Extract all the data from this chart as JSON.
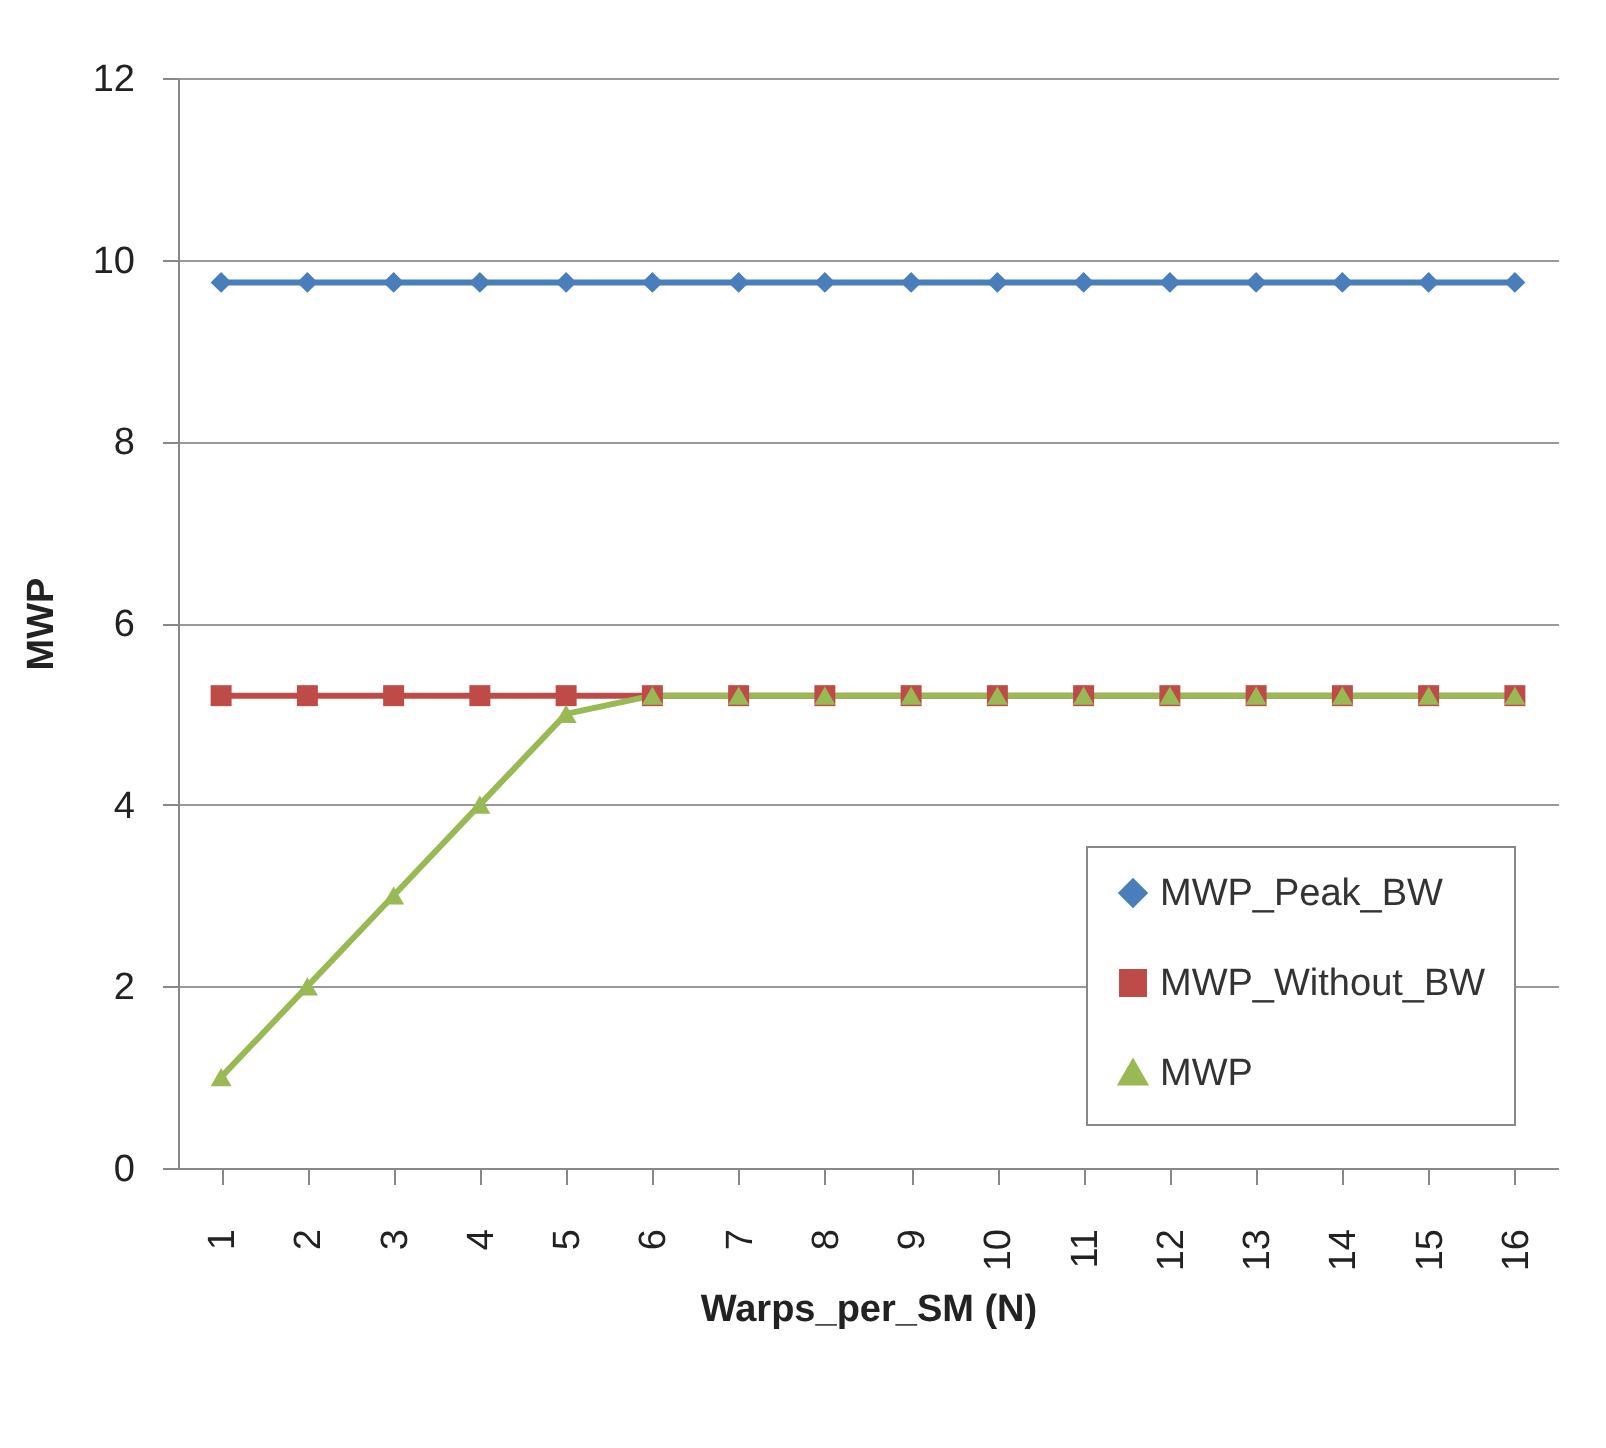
{
  "chart_data": {
    "type": "line",
    "xlabel": "Warps_per_SM (N)",
    "ylabel": "MWP",
    "categories": [
      "1",
      "2",
      "3",
      "4",
      "5",
      "6",
      "7",
      "8",
      "9",
      "10",
      "11",
      "12",
      "13",
      "14",
      "15",
      "16"
    ],
    "series": [
      {
        "name": "MWP_Peak_BW",
        "color": "#4a7ebb",
        "marker": "diamond",
        "values": [
          9.75,
          9.75,
          9.75,
          9.75,
          9.75,
          9.75,
          9.75,
          9.75,
          9.75,
          9.75,
          9.75,
          9.75,
          9.75,
          9.75,
          9.75,
          9.75
        ]
      },
      {
        "name": "MWP_Without_BW",
        "color": "#be4b48",
        "marker": "square",
        "values": [
          5.2,
          5.2,
          5.2,
          5.2,
          5.2,
          5.2,
          5.2,
          5.2,
          5.2,
          5.2,
          5.2,
          5.2,
          5.2,
          5.2,
          5.2,
          5.2
        ]
      },
      {
        "name": "MWP",
        "color": "#98b954",
        "marker": "triangle",
        "values": [
          1,
          2,
          3,
          4,
          5,
          5.2,
          5.2,
          5.2,
          5.2,
          5.2,
          5.2,
          5.2,
          5.2,
          5.2,
          5.2,
          5.2
        ]
      }
    ],
    "ylim": [
      0,
      12
    ],
    "yticks": [
      0,
      2,
      4,
      6,
      8,
      10,
      12
    ],
    "grid": "y",
    "legend": "bottom right",
    "line_style": "solid"
  }
}
